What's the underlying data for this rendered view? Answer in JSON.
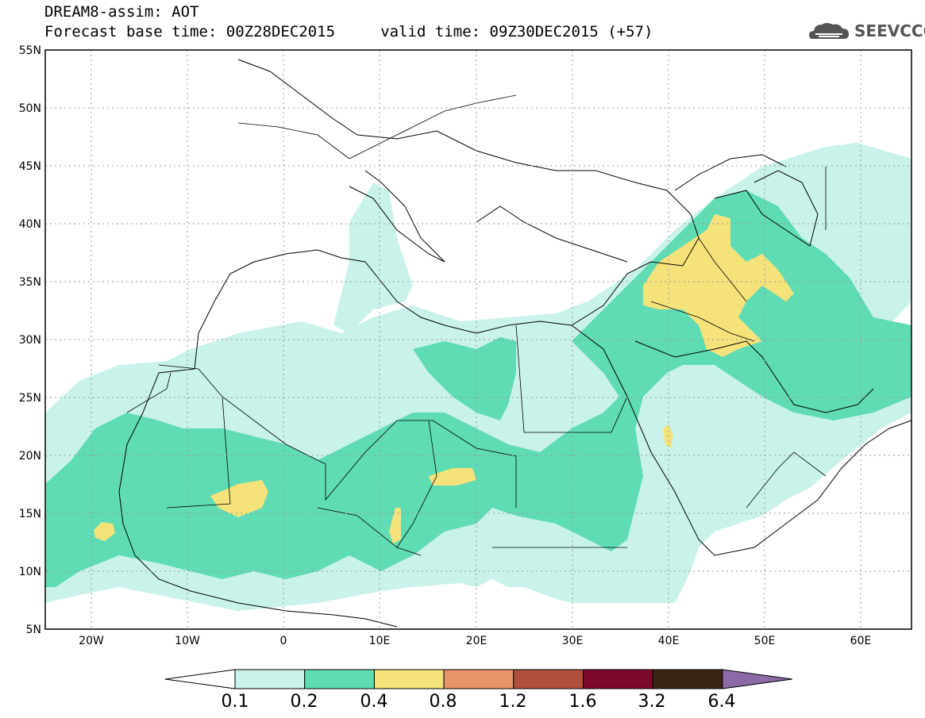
{
  "header": {
    "line1": "DREAM8-assim: AOT",
    "line2": "Forecast base time: 00Z28DEC2015     valid time: 09Z30DEC2015 (+57)"
  },
  "logo": {
    "text": "SEEVCCC",
    "icon": "cloud-logo-icon"
  },
  "map": {
    "lat_labels": [
      "55N",
      "50N",
      "45N",
      "40N",
      "35N",
      "30N",
      "25N",
      "20N",
      "15N",
      "10N",
      "5N"
    ],
    "lon_labels": [
      "20W",
      "10W",
      "0",
      "10E",
      "20E",
      "30E",
      "40E",
      "50E",
      "60E"
    ],
    "extent": {
      "lon_min": -25,
      "lon_max": 65,
      "lat_min": 5,
      "lat_max": 55
    }
  },
  "colorbar": {
    "labels": [
      "0.1",
      "0.2",
      "0.4",
      "0.8",
      "1.2",
      "1.6",
      "3.2",
      "6.4"
    ],
    "colors": [
      "#ffffff",
      "#c9f2eb",
      "#5fdcb4",
      "#f5e27a",
      "#e8946a",
      "#b0503c",
      "#7c0a2a",
      "#3c2414",
      "#8c6aa8"
    ]
  }
}
